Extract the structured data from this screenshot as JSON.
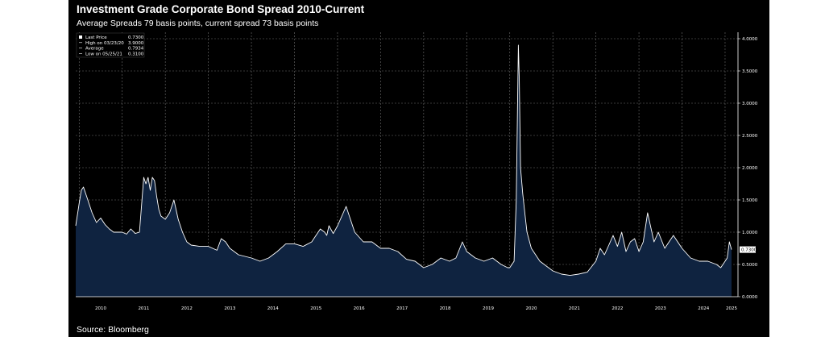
{
  "header": {
    "title": "Investment Grade Corporate Bond Spread 2010-Current",
    "subtitle": "Average Spreads 79 basis points, current spread 73 basis points"
  },
  "footer": {
    "source": "Source: Bloomberg"
  },
  "colors": {
    "background": "#000000",
    "area_fill": "#0f2340",
    "line": "#ffffff",
    "grid": "#6e6e6e"
  },
  "chart_data": {
    "type": "area",
    "title": "Investment Grade Corporate Bond Spread 2010-Current",
    "subtitle": "Average Spreads 79 basis points, current spread 73 basis points",
    "xlabel": "",
    "ylabel": "",
    "xlim": [
      2009.92,
      2025.3
    ],
    "ylim": [
      0,
      4.1
    ],
    "grid": true,
    "legend_position": "top-left",
    "x_ticks": [
      "2010",
      "2011",
      "2012",
      "2013",
      "2014",
      "2015",
      "2016",
      "2017",
      "2018",
      "2019",
      "2020",
      "2021",
      "2022",
      "2023",
      "2024",
      "2025"
    ],
    "y_ticks": [
      "0.0000",
      "0.5000",
      "1.0000",
      "1.5000",
      "2.0000",
      "2.5000",
      "3.0000",
      "3.5000",
      "4.0000"
    ],
    "legend": [
      {
        "label": "Last Price",
        "value": "0.7300"
      },
      {
        "label": "High on 03/23/20",
        "value": "3.9000"
      },
      {
        "label": "Average",
        "value": "0.7934"
      },
      {
        "label": "Low on 05/25/21",
        "value": "0.3100"
      }
    ],
    "last_price_label": "0.7300",
    "series": [
      {
        "x": [
          2009.92,
          2010.0,
          2010.05,
          2010.1,
          2010.2,
          2010.3,
          2010.4,
          2010.5,
          2010.6,
          2010.7,
          2010.8,
          2010.9,
          2011.0,
          2011.1,
          2011.2,
          2011.3,
          2011.4,
          2011.5,
          2011.55,
          2011.6,
          2011.65,
          2011.7,
          2011.75,
          2011.8,
          2011.85,
          2011.9,
          2012.0,
          2012.1,
          2012.2,
          2012.3,
          2012.4,
          2012.5,
          2012.6,
          2012.8,
          2013.0,
          2013.2,
          2013.3,
          2013.4,
          2013.5,
          2013.7,
          2014.0,
          2014.2,
          2014.4,
          2014.6,
          2014.8,
          2015.0,
          2015.2,
          2015.4,
          2015.5,
          2015.6,
          2015.7,
          2015.75,
          2015.8,
          2015.9,
          2016.0,
          2016.2,
          2016.4,
          2016.6,
          2016.8,
          2017.0,
          2017.2,
          2017.4,
          2017.6,
          2017.8,
          2018.0,
          2018.2,
          2018.4,
          2018.6,
          2018.75,
          2018.9,
          2019.0,
          2019.2,
          2019.4,
          2019.6,
          2019.8,
          2019.95,
          2020.0,
          2020.1,
          2020.15,
          2020.2,
          2020.22,
          2020.25,
          2020.3,
          2020.35,
          2020.4,
          2020.5,
          2020.7,
          2020.9,
          2021.0,
          2021.2,
          2021.4,
          2021.6,
          2021.8,
          2022.0,
          2022.1,
          2022.2,
          2022.3,
          2022.4,
          2022.5,
          2022.6,
          2022.7,
          2022.8,
          2022.9,
          2023.0,
          2023.1,
          2023.2,
          2023.3,
          2023.35,
          2023.45,
          2023.6,
          2023.8,
          2024.0,
          2024.2,
          2024.4,
          2024.6,
          2024.8,
          2024.9,
          2025.0,
          2025.05,
          2025.1,
          2025.15
        ],
        "y": [
          1.1,
          1.45,
          1.65,
          1.7,
          1.5,
          1.3,
          1.15,
          1.22,
          1.12,
          1.05,
          1.0,
          1.0,
          1.0,
          0.97,
          1.05,
          0.98,
          1.0,
          1.85,
          1.75,
          1.85,
          1.65,
          1.85,
          1.8,
          1.55,
          1.35,
          1.25,
          1.2,
          1.3,
          1.5,
          1.2,
          1.0,
          0.85,
          0.8,
          0.78,
          0.78,
          0.72,
          0.9,
          0.85,
          0.75,
          0.65,
          0.6,
          0.55,
          0.6,
          0.7,
          0.82,
          0.82,
          0.78,
          0.85,
          0.95,
          1.05,
          1.0,
          0.95,
          1.1,
          0.98,
          1.1,
          1.4,
          1.0,
          0.85,
          0.85,
          0.75,
          0.75,
          0.7,
          0.58,
          0.55,
          0.45,
          0.5,
          0.6,
          0.55,
          0.6,
          0.85,
          0.7,
          0.6,
          0.55,
          0.6,
          0.5,
          0.45,
          0.45,
          0.55,
          1.5,
          3.9,
          3.4,
          2.0,
          1.6,
          1.3,
          1.0,
          0.75,
          0.55,
          0.45,
          0.4,
          0.35,
          0.33,
          0.35,
          0.38,
          0.55,
          0.75,
          0.65,
          0.8,
          0.95,
          0.78,
          1.0,
          0.7,
          0.85,
          0.9,
          0.7,
          0.85,
          1.3,
          1.0,
          0.85,
          1.0,
          0.75,
          0.95,
          0.75,
          0.6,
          0.55,
          0.55,
          0.5,
          0.45,
          0.55,
          0.6,
          0.85,
          0.73
        ]
      }
    ]
  }
}
